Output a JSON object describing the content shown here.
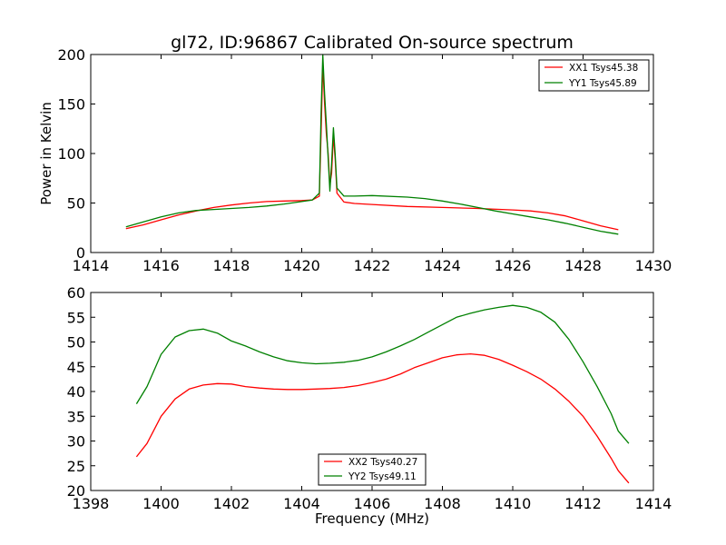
{
  "chart_data": [
    {
      "type": "line",
      "title": "gl72, ID:96867 Calibrated On-source spectrum",
      "xlabel": "",
      "ylabel": "Power in Kelvin",
      "xlim": [
        1414,
        1430
      ],
      "ylim": [
        0,
        200
      ],
      "xticks": [
        "1414",
        "1416",
        "1418",
        "1420",
        "1422",
        "1424",
        "1426",
        "1428",
        "1430"
      ],
      "yticks": [
        "0",
        "50",
        "100",
        "150",
        "200"
      ],
      "legend_position": "upper-right",
      "series": [
        {
          "name": "XX1 Tsys45.38",
          "color": "#ff0000",
          "points": [
            [
              1415.0,
              24
            ],
            [
              1415.5,
              28
            ],
            [
              1416.0,
              33
            ],
            [
              1416.5,
              38
            ],
            [
              1417.0,
              42
            ],
            [
              1417.5,
              45.5
            ],
            [
              1418.0,
              48
            ],
            [
              1418.5,
              50
            ],
            [
              1419.0,
              51.5
            ],
            [
              1419.5,
              52
            ],
            [
              1420.0,
              52.5
            ],
            [
              1420.3,
              53
            ],
            [
              1420.5,
              57
            ],
            [
              1420.55,
              120
            ],
            [
              1420.6,
              190
            ],
            [
              1420.65,
              150
            ],
            [
              1420.7,
              120
            ],
            [
              1420.75,
              100
            ],
            [
              1420.8,
              68
            ],
            [
              1420.85,
              80
            ],
            [
              1420.9,
              118
            ],
            [
              1420.95,
              95
            ],
            [
              1421.0,
              60
            ],
            [
              1421.2,
              51
            ],
            [
              1421.5,
              49.5
            ],
            [
              1422.0,
              48.5
            ],
            [
              1423.0,
              46.5
            ],
            [
              1424.0,
              45.5
            ],
            [
              1425.0,
              44.5
            ],
            [
              1426.0,
              43
            ],
            [
              1426.5,
              42
            ],
            [
              1427.0,
              40
            ],
            [
              1427.5,
              37
            ],
            [
              1428.0,
              32
            ],
            [
              1428.5,
              27
            ],
            [
              1429.0,
              23
            ]
          ]
        },
        {
          "name": "YY1 Tsys45.89",
          "color": "#008000",
          "points": [
            [
              1415.0,
              26
            ],
            [
              1415.5,
              31
            ],
            [
              1416.0,
              36
            ],
            [
              1416.5,
              40
            ],
            [
              1417.0,
              42.5
            ],
            [
              1417.5,
              43.5
            ],
            [
              1418.0,
              44.5
            ],
            [
              1418.5,
              45.5
            ],
            [
              1419.0,
              47
            ],
            [
              1419.5,
              49
            ],
            [
              1420.0,
              51.5
            ],
            [
              1420.3,
              53
            ],
            [
              1420.5,
              60
            ],
            [
              1420.55,
              140
            ],
            [
              1420.6,
              200
            ],
            [
              1420.65,
              160
            ],
            [
              1420.7,
              130
            ],
            [
              1420.75,
              95
            ],
            [
              1420.8,
              62
            ],
            [
              1420.85,
              90
            ],
            [
              1420.9,
              126
            ],
            [
              1420.95,
              100
            ],
            [
              1421.0,
              65
            ],
            [
              1421.2,
              57
            ],
            [
              1421.5,
              57
            ],
            [
              1422.0,
              57.5
            ],
            [
              1423.0,
              56
            ],
            [
              1423.5,
              54.5
            ],
            [
              1424.0,
              52
            ],
            [
              1424.5,
              49
            ],
            [
              1425.0,
              45.5
            ],
            [
              1425.5,
              42
            ],
            [
              1426.0,
              39
            ],
            [
              1426.5,
              36
            ],
            [
              1427.0,
              33
            ],
            [
              1427.5,
              29.5
            ],
            [
              1428.0,
              25.5
            ],
            [
              1428.5,
              21.5
            ],
            [
              1429.0,
              18.5
            ]
          ]
        }
      ]
    },
    {
      "type": "line",
      "title": "",
      "xlabel": "Frequency (MHz)",
      "ylabel": "",
      "xlim": [
        1398,
        1414
      ],
      "ylim": [
        20,
        60
      ],
      "xticks": [
        "1398",
        "1400",
        "1402",
        "1404",
        "1406",
        "1408",
        "1410",
        "1412",
        "1414"
      ],
      "yticks": [
        "20",
        "25",
        "30",
        "35",
        "40",
        "45",
        "50",
        "55",
        "60"
      ],
      "legend_position": "lower-center",
      "series": [
        {
          "name": "XX2 Tsys40.27",
          "color": "#ff0000",
          "points": [
            [
              1399.3,
              26.8
            ],
            [
              1399.6,
              29.5
            ],
            [
              1400.0,
              35
            ],
            [
              1400.4,
              38.5
            ],
            [
              1400.8,
              40.5
            ],
            [
              1401.2,
              41.3
            ],
            [
              1401.6,
              41.6
            ],
            [
              1402.0,
              41.5
            ],
            [
              1402.4,
              41
            ],
            [
              1402.8,
              40.7
            ],
            [
              1403.2,
              40.5
            ],
            [
              1403.6,
              40.4
            ],
            [
              1404.0,
              40.4
            ],
            [
              1404.4,
              40.5
            ],
            [
              1404.8,
              40.6
            ],
            [
              1405.2,
              40.8
            ],
            [
              1405.6,
              41.2
            ],
            [
              1406.0,
              41.8
            ],
            [
              1406.4,
              42.5
            ],
            [
              1406.8,
              43.5
            ],
            [
              1407.2,
              44.8
            ],
            [
              1407.6,
              45.8
            ],
            [
              1408.0,
              46.8
            ],
            [
              1408.4,
              47.4
            ],
            [
              1408.8,
              47.6
            ],
            [
              1409.2,
              47.3
            ],
            [
              1409.6,
              46.5
            ],
            [
              1410.0,
              45.3
            ],
            [
              1410.4,
              44
            ],
            [
              1410.8,
              42.5
            ],
            [
              1411.2,
              40.5
            ],
            [
              1411.6,
              38
            ],
            [
              1412.0,
              35
            ],
            [
              1412.4,
              31
            ],
            [
              1412.8,
              26.5
            ],
            [
              1413.0,
              24
            ],
            [
              1413.3,
              21.5
            ]
          ]
        },
        {
          "name": "YY2 Tsys49.11",
          "color": "#008000",
          "points": [
            [
              1399.3,
              37.5
            ],
            [
              1399.6,
              41
            ],
            [
              1400.0,
              47.5
            ],
            [
              1400.4,
              51
            ],
            [
              1400.8,
              52.3
            ],
            [
              1401.2,
              52.6
            ],
            [
              1401.6,
              51.8
            ],
            [
              1402.0,
              50.2
            ],
            [
              1402.4,
              49.2
            ],
            [
              1402.8,
              48
            ],
            [
              1403.2,
              47
            ],
            [
              1403.6,
              46.2
            ],
            [
              1404.0,
              45.8
            ],
            [
              1404.4,
              45.6
            ],
            [
              1404.8,
              45.7
            ],
            [
              1405.2,
              45.9
            ],
            [
              1405.6,
              46.3
            ],
            [
              1406.0,
              47
            ],
            [
              1406.4,
              48
            ],
            [
              1406.8,
              49.2
            ],
            [
              1407.2,
              50.5
            ],
            [
              1407.6,
              52
            ],
            [
              1408.0,
              53.5
            ],
            [
              1408.4,
              55
            ],
            [
              1408.8,
              55.8
            ],
            [
              1409.2,
              56.5
            ],
            [
              1409.6,
              57
            ],
            [
              1410.0,
              57.4
            ],
            [
              1410.4,
              57
            ],
            [
              1410.8,
              56
            ],
            [
              1411.2,
              54
            ],
            [
              1411.6,
              50.5
            ],
            [
              1412.0,
              46
            ],
            [
              1412.4,
              41
            ],
            [
              1412.8,
              35.5
            ],
            [
              1413.0,
              32
            ],
            [
              1413.3,
              29.5
            ]
          ]
        }
      ]
    }
  ]
}
